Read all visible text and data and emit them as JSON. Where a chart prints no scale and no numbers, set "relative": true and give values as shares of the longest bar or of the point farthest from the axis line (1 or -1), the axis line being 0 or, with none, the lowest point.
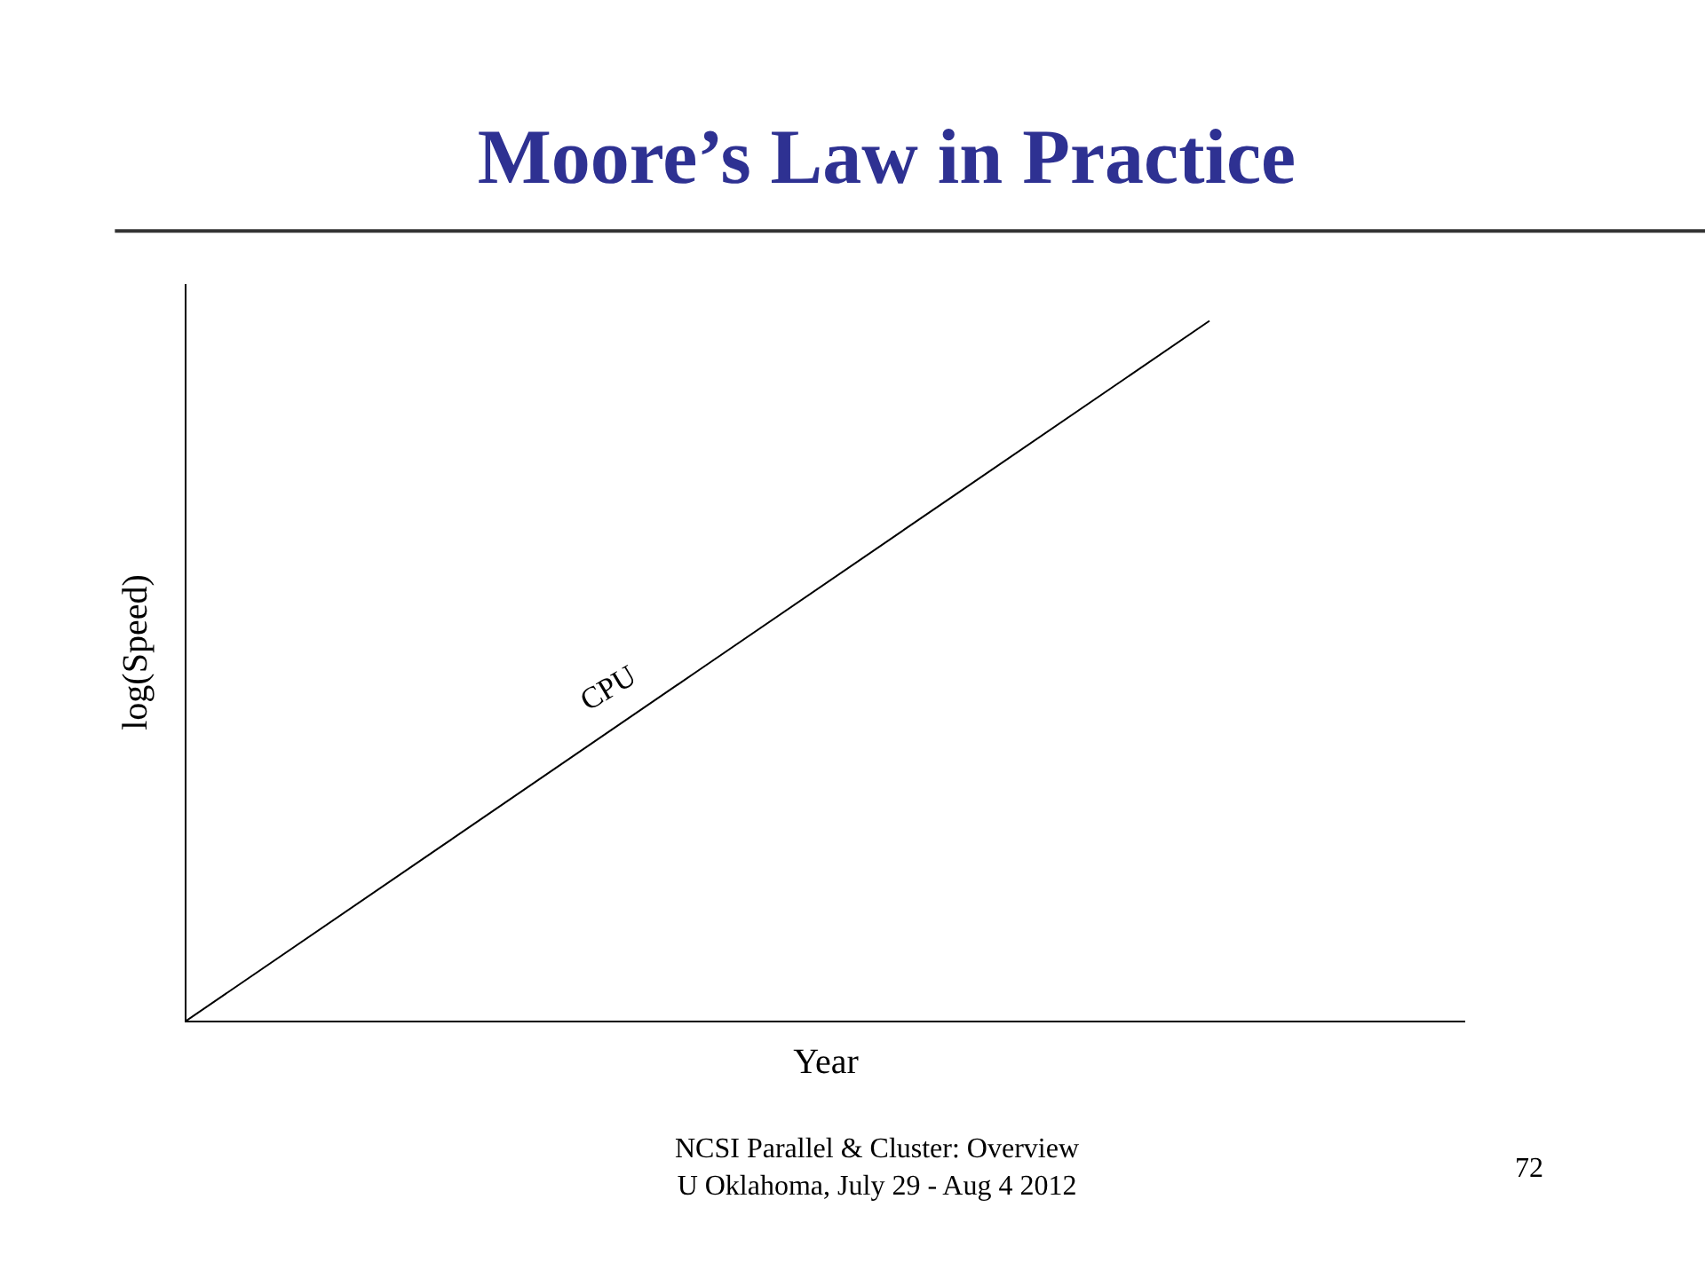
{
  "chart_data": {
    "type": "line",
    "title": "Moore’s Law in Practice",
    "xlabel": "Year",
    "ylabel": "log(Speed)",
    "relative": true,
    "tick_labels": false,
    "legend": false,
    "marker": "none",
    "line_style": "solid",
    "categories": [
      null,
      null,
      null,
      null,
      null,
      null
    ],
    "series": [
      {
        "name": "CPU",
        "color": "#000000",
        "values": [
          0,
          0.25,
          0.5,
          0.75,
          1,
          null
        ]
      }
    ],
    "annotations": [
      "NCSI Parallel & Cluster: Overview\nU Oklahoma, July 29 - Aug 4 2012",
      "72"
    ]
  }
}
